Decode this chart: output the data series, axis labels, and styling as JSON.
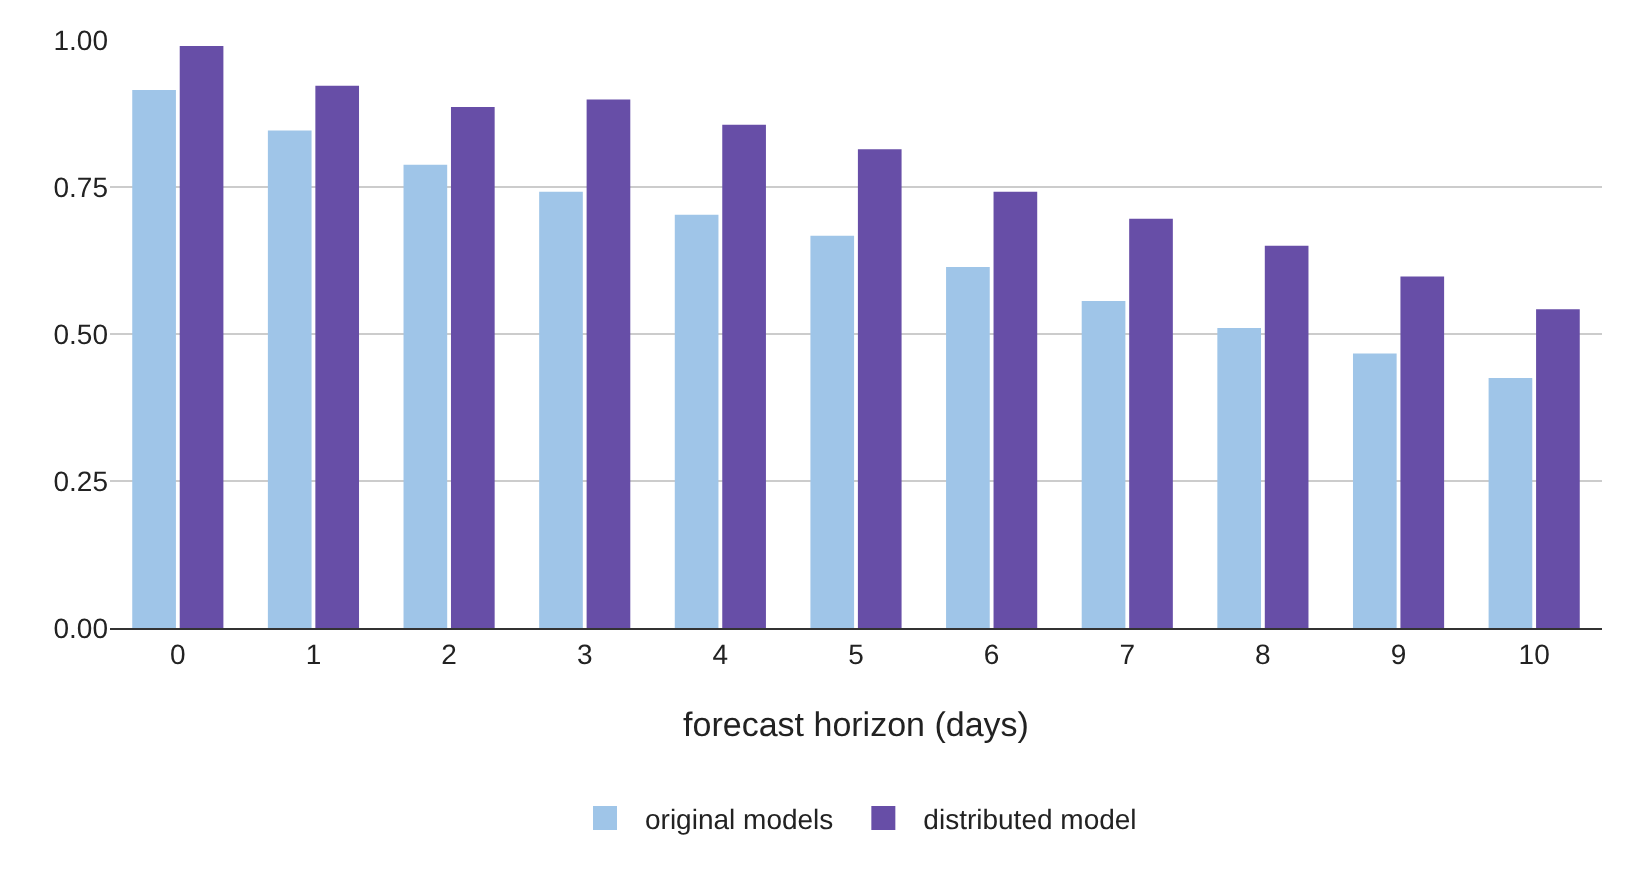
{
  "chart_data": {
    "type": "bar",
    "xlabel": "forecast horizon (days)",
    "categories": [
      "0",
      "1",
      "2",
      "3",
      "4",
      "5",
      "6",
      "7",
      "8",
      "9",
      "10"
    ],
    "series": [
      {
        "name": "original models",
        "color": "#9fc5e8",
        "values": [
          0.915,
          0.846,
          0.788,
          0.742,
          0.703,
          0.667,
          0.614,
          0.556,
          0.51,
          0.467,
          0.425
        ]
      },
      {
        "name": "distributed model",
        "color": "#674ea7",
        "values": [
          0.99,
          0.922,
          0.886,
          0.899,
          0.856,
          0.814,
          0.742,
          0.696,
          0.65,
          0.598,
          0.542
        ]
      }
    ],
    "ylim": [
      0,
      1
    ],
    "yticks": [
      {
        "value": 0,
        "label": "0.00"
      },
      {
        "value": 0.25,
        "label": "0.25"
      },
      {
        "value": 0.5,
        "label": "0.50"
      },
      {
        "value": 0.75,
        "label": "0.75"
      },
      {
        "value": 1,
        "label": "1.00"
      }
    ],
    "grid": "y",
    "legend": "bottom"
  }
}
